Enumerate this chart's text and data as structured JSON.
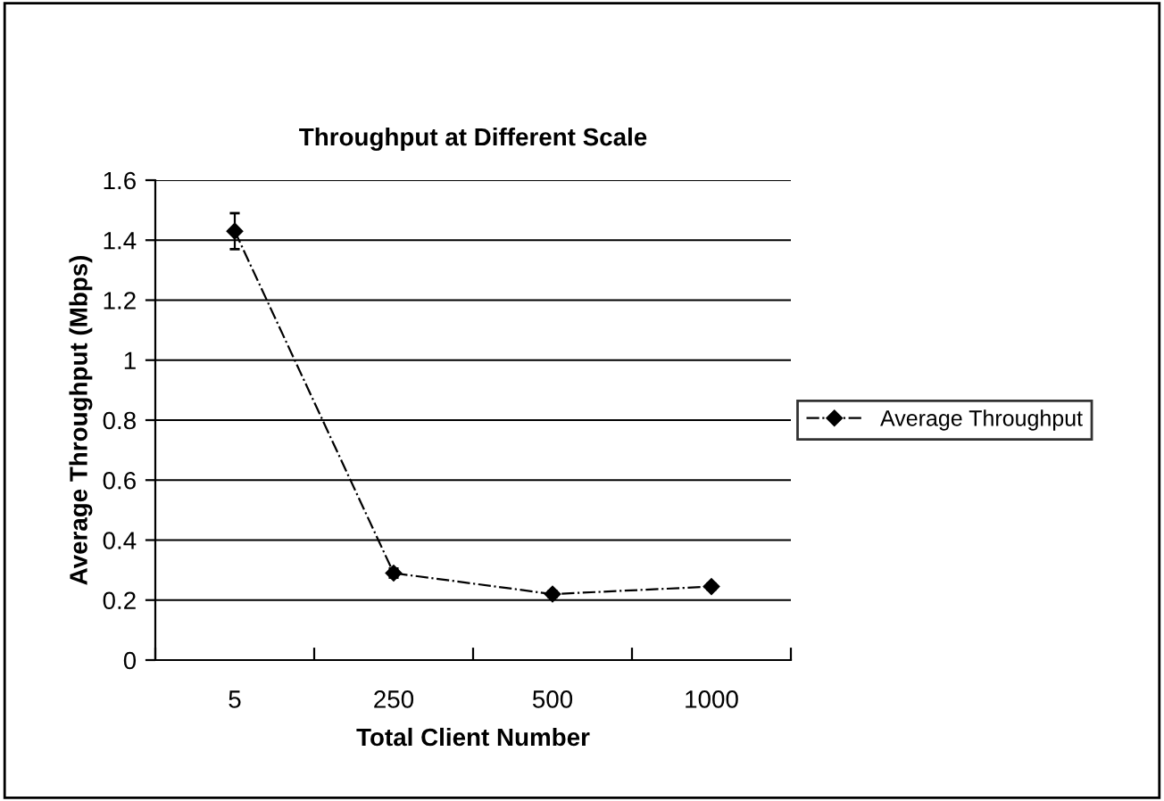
{
  "chart_data": {
    "type": "line",
    "title": "Throughput at Different Scale",
    "xlabel": "Total Client Number",
    "ylabel": "Average Throughput (Mbps)",
    "categories": [
      "5",
      "250",
      "500",
      "1000"
    ],
    "series": [
      {
        "name": "Average Throughput",
        "color": "#000000",
        "values": [
          1.43,
          0.29,
          0.22,
          0.245
        ],
        "errors": [
          0.06,
          0.015,
          0.01,
          0.01
        ]
      }
    ],
    "ylim": [
      0,
      1.6
    ],
    "yticks": [
      0,
      0.2,
      0.4,
      0.6,
      0.8,
      1,
      1.2,
      1.4,
      1.6
    ],
    "grid": "y",
    "legend": "right",
    "marker": "diamond",
    "line_style": "dashed"
  }
}
